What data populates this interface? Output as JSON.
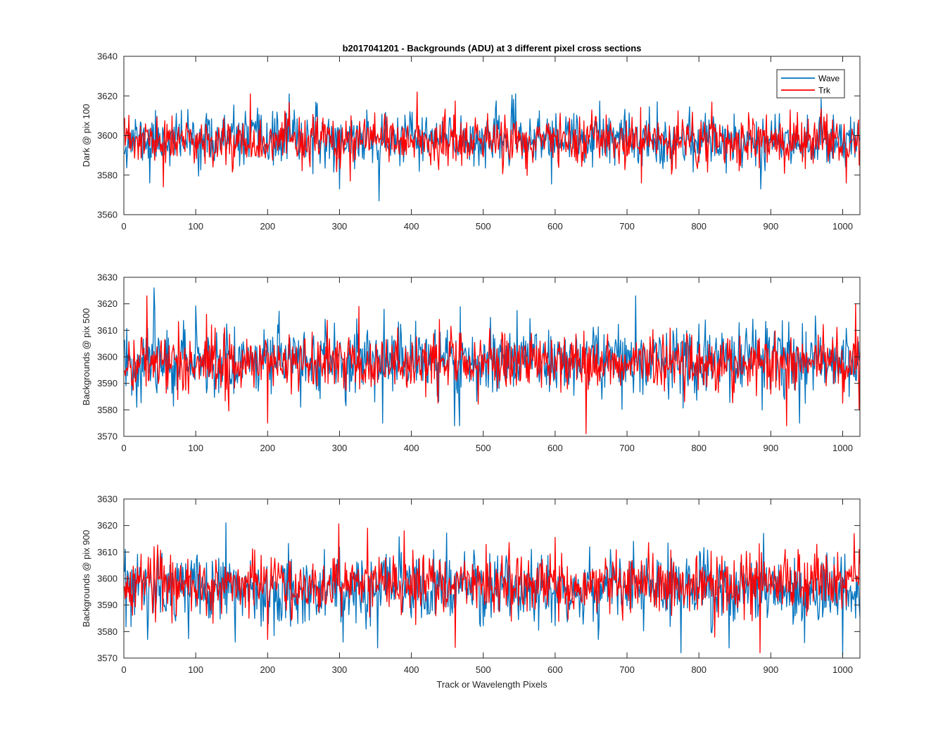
{
  "figure": {
    "title": "b2017041201 - Backgrounds (ADU) at 3 different pixel cross sections",
    "xlabel": "Track or Wavelength Pixels"
  },
  "legend": {
    "items": [
      {
        "label": "Wave",
        "color": "#0072BD"
      },
      {
        "label": "Trk",
        "color": "#FF0000"
      }
    ],
    "placement": "top-right of top subplot"
  },
  "chart_data": [
    {
      "type": "line",
      "ylabel": "Dark @ pix 100",
      "xlim": [
        0,
        1024
      ],
      "ylim": [
        3560,
        3640
      ],
      "xticks": [
        0,
        100,
        200,
        300,
        400,
        500,
        600,
        700,
        800,
        900,
        1000
      ],
      "yticks": [
        3560,
        3580,
        3600,
        3620,
        3640
      ],
      "noise": {
        "Wave": {
          "mean": 3598,
          "sd": 6.5,
          "seed": 11
        },
        "Trk": {
          "mean": 3597,
          "sd": 6.0,
          "seed": 23
        }
      },
      "series": [
        {
          "name": "Wave",
          "color": "#0072BD",
          "x_start": 1,
          "x_end": 1024,
          "points": [
            [
              355,
              3567
            ],
            [
              300,
              3573
            ],
            [
              36,
              3576
            ],
            [
              545,
              3621
            ],
            [
              886,
              3573
            ],
            [
              230,
              3621
            ],
            [
              742,
              3617
            ]
          ]
        },
        {
          "name": "Trk",
          "color": "#FF0000",
          "x_start": 1,
          "x_end": 1024,
          "points": [
            [
              408,
              3622
            ],
            [
              55,
              3574
            ],
            [
              720,
              3576
            ],
            [
              315,
              3577
            ],
            [
              1005,
              3576
            ],
            [
              176,
              3621
            ],
            [
              1023,
              3585
            ]
          ]
        }
      ]
    },
    {
      "type": "line",
      "ylabel": "Backgrounds @ pix 500",
      "xlim": [
        0,
        1024
      ],
      "ylim": [
        3570,
        3630
      ],
      "xticks": [
        0,
        100,
        200,
        300,
        400,
        500,
        600,
        700,
        800,
        900,
        1000
      ],
      "yticks": [
        3570,
        3580,
        3590,
        3600,
        3610,
        3620,
        3630
      ],
      "noise": {
        "Wave": {
          "mean": 3599,
          "sd": 6.5,
          "seed": 37
        },
        "Trk": {
          "mean": 3598,
          "sd": 5.5,
          "seed": 41
        }
      },
      "series": [
        {
          "name": "Wave",
          "color": "#0072BD",
          "x_start": 1,
          "x_end": 1024,
          "points": [
            [
              42,
              3626
            ],
            [
              712,
              3623
            ],
            [
              460,
              3574
            ],
            [
              467,
              3574
            ],
            [
              360,
              3575
            ],
            [
              940,
              3575
            ],
            [
              18,
              3581
            ]
          ]
        },
        {
          "name": "Trk",
          "color": "#FF0000",
          "x_start": 1,
          "x_end": 1024,
          "points": [
            [
              32,
              3623
            ],
            [
              327,
              3619
            ],
            [
              643,
              3571
            ],
            [
              1018,
              3620
            ],
            [
              922,
              3574
            ],
            [
              200,
              3575
            ],
            [
              1023,
              3580
            ]
          ]
        }
      ]
    },
    {
      "type": "line",
      "ylabel": "Backgrounds @ pix 900",
      "xlim": [
        0,
        1024
      ],
      "ylim": [
        3570,
        3630
      ],
      "xticks": [
        0,
        100,
        200,
        300,
        400,
        500,
        600,
        700,
        800,
        900,
        1000
      ],
      "yticks": [
        3570,
        3580,
        3590,
        3600,
        3610,
        3620,
        3630
      ],
      "noise": {
        "Wave": {
          "mean": 3596,
          "sd": 6.5,
          "seed": 53
        },
        "Trk": {
          "mean": 3598,
          "sd": 5.5,
          "seed": 67
        }
      },
      "series": [
        {
          "name": "Wave",
          "color": "#0072BD",
          "x_start": 1,
          "x_end": 1024,
          "points": [
            [
              142,
              3621
            ],
            [
              1000,
              3571
            ],
            [
              775,
              3572
            ],
            [
              305,
              3576
            ],
            [
              155,
              3576
            ],
            [
              660,
              3577
            ],
            [
              33,
              3577
            ]
          ]
        },
        {
          "name": "Trk",
          "color": "#FF0000",
          "x_start": 1,
          "x_end": 1024,
          "points": [
            [
              339,
              3619
            ],
            [
              1016,
              3617
            ],
            [
              885,
              3572
            ],
            [
              461,
              3574
            ],
            [
              390,
              3618
            ],
            [
              200,
              3577
            ],
            [
              1023,
              3611
            ]
          ]
        }
      ]
    }
  ]
}
